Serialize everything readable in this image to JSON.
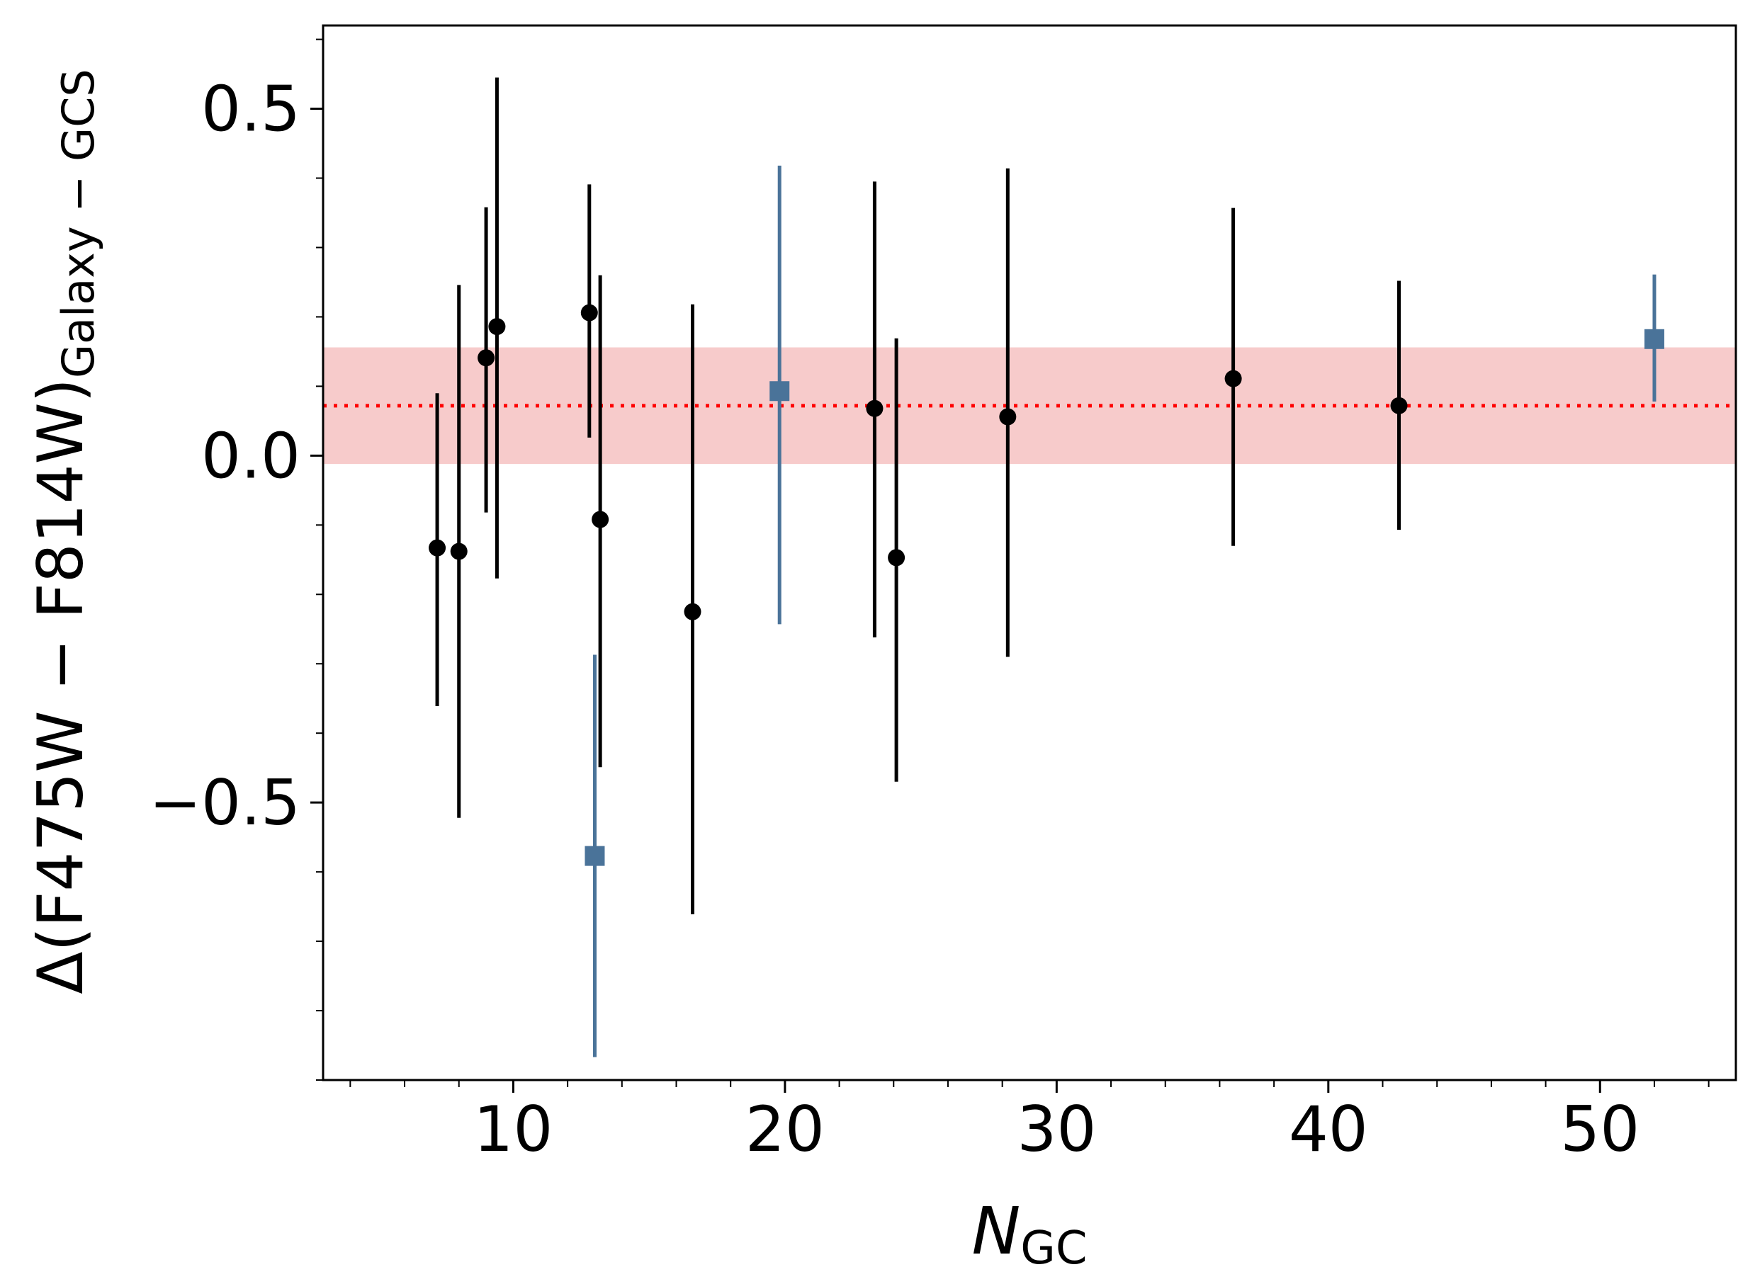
{
  "chart_data": {
    "type": "scatter",
    "title": "",
    "xlabel": {
      "main": "N",
      "sub": "GC"
    },
    "ylabel": {
      "main": "Δ(F475W − F814W)",
      "sub": "Galaxy − GCS"
    },
    "xlim": [
      3,
      55
    ],
    "ylim": [
      -0.9,
      0.62
    ],
    "x_ticks": [
      10,
      20,
      30,
      40,
      50
    ],
    "x_tick_labels": [
      "10",
      "20",
      "30",
      "40",
      "50"
    ],
    "y_ticks": [
      -0.5,
      0.0,
      0.5
    ],
    "y_tick_labels": [
      "−0.5",
      "0.0",
      "0.5"
    ],
    "x_minor_step": 2,
    "y_minor_step": 0.1,
    "grid": false,
    "reference_line": {
      "y": 0.072,
      "color": "#ff0000",
      "style": "dotted"
    },
    "reference_band": {
      "y_low": -0.012,
      "y_high": 0.156,
      "color": "#f7cbcb"
    },
    "series": [
      {
        "marker": "circle",
        "color": "#000000",
        "points": [
          {
            "x": 7.2,
            "y": -0.133,
            "yerr_low": 0.228,
            "yerr_high": 0.223
          },
          {
            "x": 8.0,
            "y": -0.138,
            "yerr_low": 0.384,
            "yerr_high": 0.384
          },
          {
            "x": 9.0,
            "y": 0.141,
            "yerr_low": 0.223,
            "yerr_high": 0.217
          },
          {
            "x": 9.4,
            "y": 0.186,
            "yerr_low": 0.363,
            "yerr_high": 0.359
          },
          {
            "x": 12.8,
            "y": 0.206,
            "yerr_low": 0.18,
            "yerr_high": 0.185
          },
          {
            "x": 13.2,
            "y": -0.092,
            "yerr_low": 0.357,
            "yerr_high": 0.352
          },
          {
            "x": 16.6,
            "y": -0.225,
            "yerr_low": 0.436,
            "yerr_high": 0.443
          },
          {
            "x": 23.3,
            "y": 0.068,
            "yerr_low": 0.33,
            "yerr_high": 0.327
          },
          {
            "x": 24.1,
            "y": -0.147,
            "yerr_low": 0.323,
            "yerr_high": 0.316
          },
          {
            "x": 28.2,
            "y": 0.056,
            "yerr_low": 0.346,
            "yerr_high": 0.358
          },
          {
            "x": 36.5,
            "y": 0.111,
            "yerr_low": 0.241,
            "yerr_high": 0.246
          },
          {
            "x": 42.6,
            "y": 0.072,
            "yerr_low": 0.179,
            "yerr_high": 0.18
          }
        ]
      },
      {
        "marker": "square",
        "color": "#4a7399",
        "points": [
          {
            "x": 13.0,
            "y": -0.577,
            "yerr_low": 0.29,
            "yerr_high": 0.29
          },
          {
            "x": 19.8,
            "y": 0.093,
            "yerr_low": 0.336,
            "yerr_high": 0.325
          },
          {
            "x": 52.0,
            "y": 0.168,
            "yerr_low": 0.09,
            "yerr_high": 0.093
          }
        ]
      }
    ]
  }
}
